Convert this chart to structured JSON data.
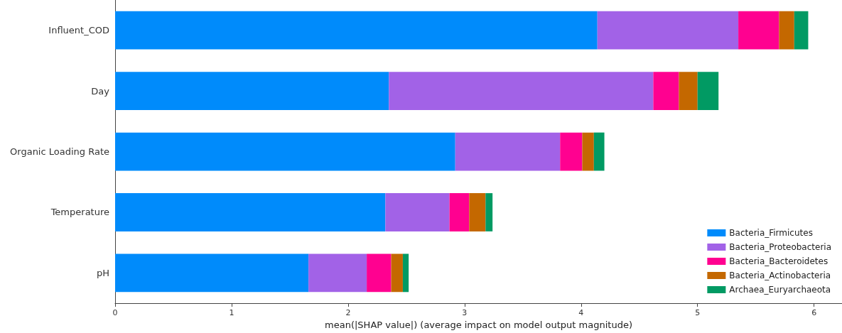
{
  "chart_data": {
    "type": "bar",
    "orientation": "horizontal",
    "stacked": true,
    "xlabel": "mean(|SHAP value|) (average impact on model output magnitude)",
    "categories": [
      "Influent_COD",
      "Day",
      "Organic Loading Rate",
      "Temperature",
      "pH"
    ],
    "series": [
      {
        "name": "Bacteria_Firmicutes",
        "color": "#008bfb",
        "values": [
          4.14,
          2.35,
          2.92,
          2.32,
          1.66
        ]
      },
      {
        "name": "Bacteria_Proteobacteria",
        "color": "#a262e7",
        "values": [
          1.21,
          2.27,
          0.9,
          0.55,
          0.5
        ]
      },
      {
        "name": "Bacteria_Bacteroidetes",
        "color": "#ff0190",
        "values": [
          0.35,
          0.22,
          0.19,
          0.17,
          0.21
        ]
      },
      {
        "name": "Bacteria_Actinobacteria",
        "color": "#c46800",
        "values": [
          0.13,
          0.16,
          0.1,
          0.14,
          0.1
        ]
      },
      {
        "name": "Archaea_Euryarchaeota",
        "color": "#019a63",
        "values": [
          0.12,
          0.18,
          0.09,
          0.06,
          0.05
        ]
      }
    ],
    "xlim": [
      0,
      6.24
    ],
    "xticks": [
      0,
      1,
      2,
      3,
      4,
      5,
      6
    ],
    "grid": false,
    "legend": "bottom right"
  }
}
